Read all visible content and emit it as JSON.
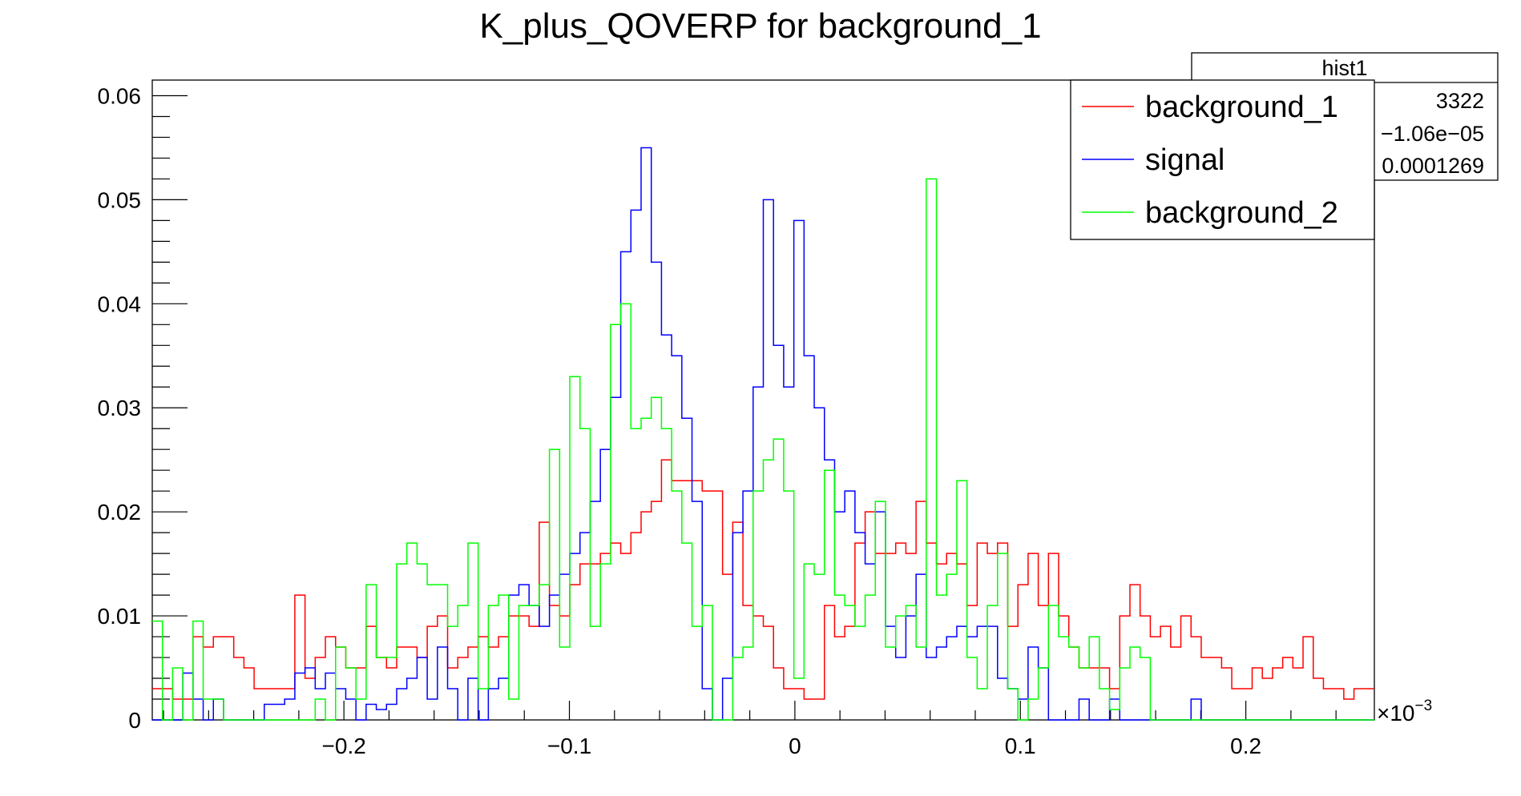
{
  "chart_data": {
    "type": "histogram-step",
    "title": "K_plus_QOVERP for background_1",
    "xlabel": "",
    "ylabel": "",
    "x_multiplier_label": "×10",
    "x_multiplier_exponent": "−3",
    "xlim": [
      -0.285,
      0.257
    ],
    "ylim": [
      0,
      0.0615
    ],
    "x_ticks": [
      -0.2,
      -0.1,
      0,
      0.1,
      0.2
    ],
    "x_tick_labels": [
      "−0.2",
      "−0.1",
      "0",
      "0.1",
      "0.2"
    ],
    "y_ticks": [
      0,
      0.01,
      0.02,
      0.03,
      0.04,
      0.05,
      0.06
    ],
    "y_tick_labels": [
      "0",
      "0.01",
      "0.02",
      "0.03",
      "0.04",
      "0.05",
      "0.06"
    ],
    "bins": 120,
    "legend_position": "top-right",
    "series": [
      {
        "name": "background_1",
        "color": "#ff0000",
        "values": [
          0.003,
          0.003,
          0.002,
          0.002,
          0.008,
          0.007,
          0.008,
          0.008,
          0.006,
          0.005,
          0.003,
          0.003,
          0.003,
          0.003,
          0.012,
          0.004,
          0.006,
          0.008,
          0.007,
          0.005,
          0.005,
          0.009,
          0.006,
          0.005,
          0.007,
          0.007,
          0.006,
          0.009,
          0.01,
          0.005,
          0.006,
          0.007,
          0.008,
          0.007,
          0.008,
          0.01,
          0.01,
          0.009,
          0.019,
          0.011,
          0.01,
          0.013,
          0.015,
          0.015,
          0.016,
          0.017,
          0.016,
          0.018,
          0.02,
          0.021,
          0.025,
          0.023,
          0.023,
          0.023,
          0.022,
          0.022,
          0.014,
          0.019,
          0.011,
          0.01,
          0.009,
          0.005,
          0.003,
          0.003,
          0.002,
          0.002,
          0.011,
          0.008,
          0.009,
          0.017,
          0.02,
          0.016,
          0.016,
          0.017,
          0.016,
          0.021,
          0.017,
          0.015,
          0.016,
          0.015,
          0.011,
          0.017,
          0.016,
          0.017,
          0.009,
          0.013,
          0.016,
          0.011,
          0.016,
          0.01,
          0.007,
          0.005,
          0.005,
          0.005,
          0.003,
          0.01,
          0.013,
          0.01,
          0.008,
          0.009,
          0.007,
          0.01,
          0.008,
          0.006,
          0.006,
          0.005,
          0.003,
          0.003,
          0.005,
          0.004,
          0.005,
          0.006,
          0.005,
          0.008,
          0.004,
          0.003,
          0.003,
          0.002,
          0.003,
          0.003
        ]
      },
      {
        "name": "signal",
        "color": "#0000ff",
        "values": [
          0.0,
          0.0,
          0.0,
          0.0045,
          0.002,
          0.0,
          0.002,
          0.0,
          0.0,
          0.0,
          0.0,
          0.0015,
          0.0015,
          0.002,
          0.0045,
          0.005,
          0.003,
          0.0045,
          0.003,
          0.002,
          0.0,
          0.0015,
          0.001,
          0.0015,
          0.003,
          0.004,
          0.006,
          0.002,
          0.007,
          0.003,
          0.0,
          0.004,
          0.0,
          0.003,
          0.004,
          0.012,
          0.013,
          0.011,
          0.009,
          0.012,
          0.014,
          0.016,
          0.018,
          0.021,
          0.026,
          0.031,
          0.045,
          0.049,
          0.055,
          0.044,
          0.037,
          0.035,
          0.029,
          0.021,
          0.003,
          0.0,
          0.004,
          0.018,
          0.022,
          0.032,
          0.05,
          0.036,
          0.032,
          0.048,
          0.035,
          0.03,
          0.025,
          0.02,
          0.022,
          0.018,
          0.015,
          0.02,
          0.009,
          0.006,
          0.01,
          0.014,
          0.006,
          0.007,
          0.008,
          0.009,
          0.008,
          0.009,
          0.009,
          0.004,
          0.003,
          0.002,
          0.007,
          0.005,
          0.0,
          0.0,
          0.0,
          0.002,
          0.0,
          0.0,
          0.002,
          0.0,
          0.0,
          0.0,
          0.0,
          0.0,
          0.0,
          0.0,
          0.002,
          0.0,
          0.0,
          0.0,
          0.0,
          0.0,
          0.0,
          0.0,
          0.0,
          0.0,
          0.0,
          0.0,
          0.0,
          0.0,
          0.0,
          0.0,
          0.0,
          0.0
        ]
      },
      {
        "name": "background_2",
        "color": "#00ff00",
        "values": [
          0.0095,
          0.0,
          0.005,
          0.0,
          0.0095,
          0.002,
          0.002,
          0.0,
          0.0,
          0.0,
          0.0,
          0.0,
          0.0,
          0.0,
          0.0,
          0.0,
          0.002,
          0.0,
          0.007,
          0.005,
          0.002,
          0.013,
          0.006,
          0.006,
          0.015,
          0.017,
          0.015,
          0.013,
          0.013,
          0.009,
          0.011,
          0.017,
          0.003,
          0.011,
          0.012,
          0.002,
          0.011,
          0.011,
          0.013,
          0.026,
          0.007,
          0.033,
          0.028,
          0.009,
          0.015,
          0.038,
          0.04,
          0.028,
          0.029,
          0.031,
          0.028,
          0.022,
          0.017,
          0.009,
          0.011,
          0.0,
          0.0,
          0.006,
          0.007,
          0.022,
          0.025,
          0.027,
          0.022,
          0.004,
          0.015,
          0.014,
          0.024,
          0.012,
          0.011,
          0.009,
          0.012,
          0.021,
          0.007,
          0.01,
          0.011,
          0.007,
          0.052,
          0.012,
          0.014,
          0.023,
          0.006,
          0.003,
          0.011,
          0.016,
          0.003,
          0.0,
          0.002,
          0.005,
          0.011,
          0.008,
          0.007,
          0.005,
          0.008,
          0.003,
          0.001,
          0.005,
          0.007,
          0.006,
          0.0,
          0.0,
          0.0,
          0.0,
          0.0,
          0.0,
          0.0,
          0.0,
          0.0,
          0.0,
          0.0,
          0.0,
          0.0,
          0.0,
          0.0,
          0.0,
          0.0,
          0.0,
          0.0,
          0.0,
          0.0,
          0.0
        ]
      }
    ]
  },
  "stats_box": {
    "title": "hist1",
    "entries_value": "3322",
    "mean_value": "−1.06e−05",
    "stddev_value": "0.0001269"
  }
}
